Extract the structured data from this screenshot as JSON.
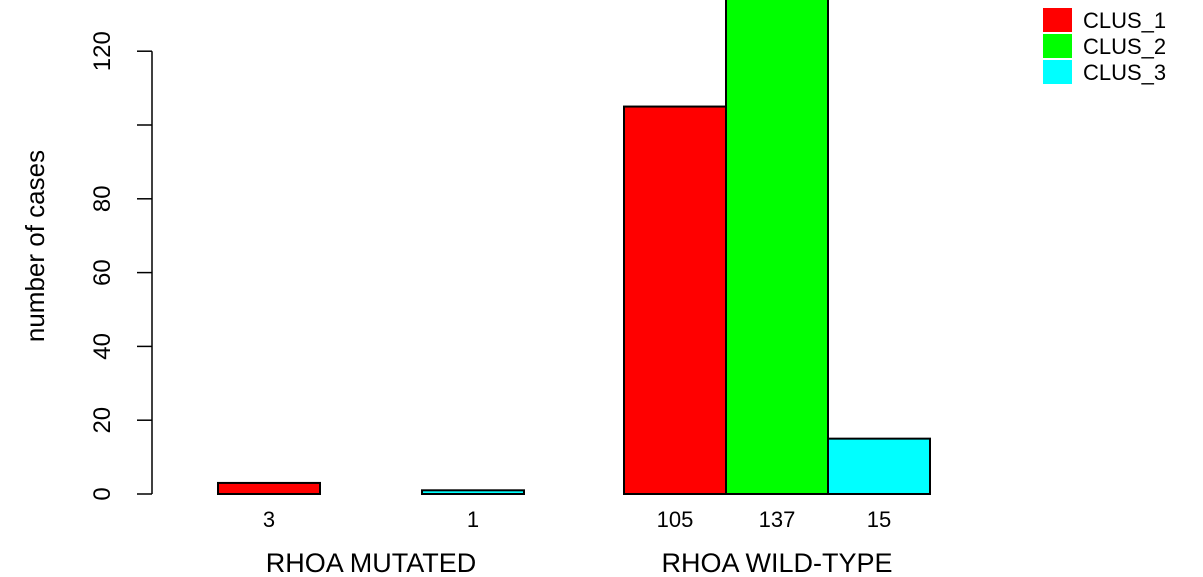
{
  "chart_data": {
    "type": "bar",
    "title": "",
    "xlabel": "",
    "ylabel": "number of cases",
    "ylim": [
      0,
      137
    ],
    "yticks": [
      0,
      20,
      40,
      60,
      80,
      100,
      120
    ],
    "ytick_labels": [
      "0",
      "20",
      "40",
      "60",
      "80",
      "",
      "120"
    ],
    "grid": false,
    "legend_position": "top-right",
    "categories": [
      "RHOA MUTATED",
      "RHOA WILD-TYPE"
    ],
    "series": [
      {
        "name": "CLUS_1",
        "color": "#ff0000",
        "values": [
          3,
          105
        ],
        "labels": [
          "3",
          "105"
        ]
      },
      {
        "name": "CLUS_2",
        "color": "#00ff00",
        "values": [
          0,
          137
        ],
        "labels": [
          "",
          "137"
        ]
      },
      {
        "name": "CLUS_3",
        "color": "#00ffff",
        "values": [
          1,
          15
        ],
        "labels": [
          "1",
          "15"
        ]
      }
    ]
  }
}
